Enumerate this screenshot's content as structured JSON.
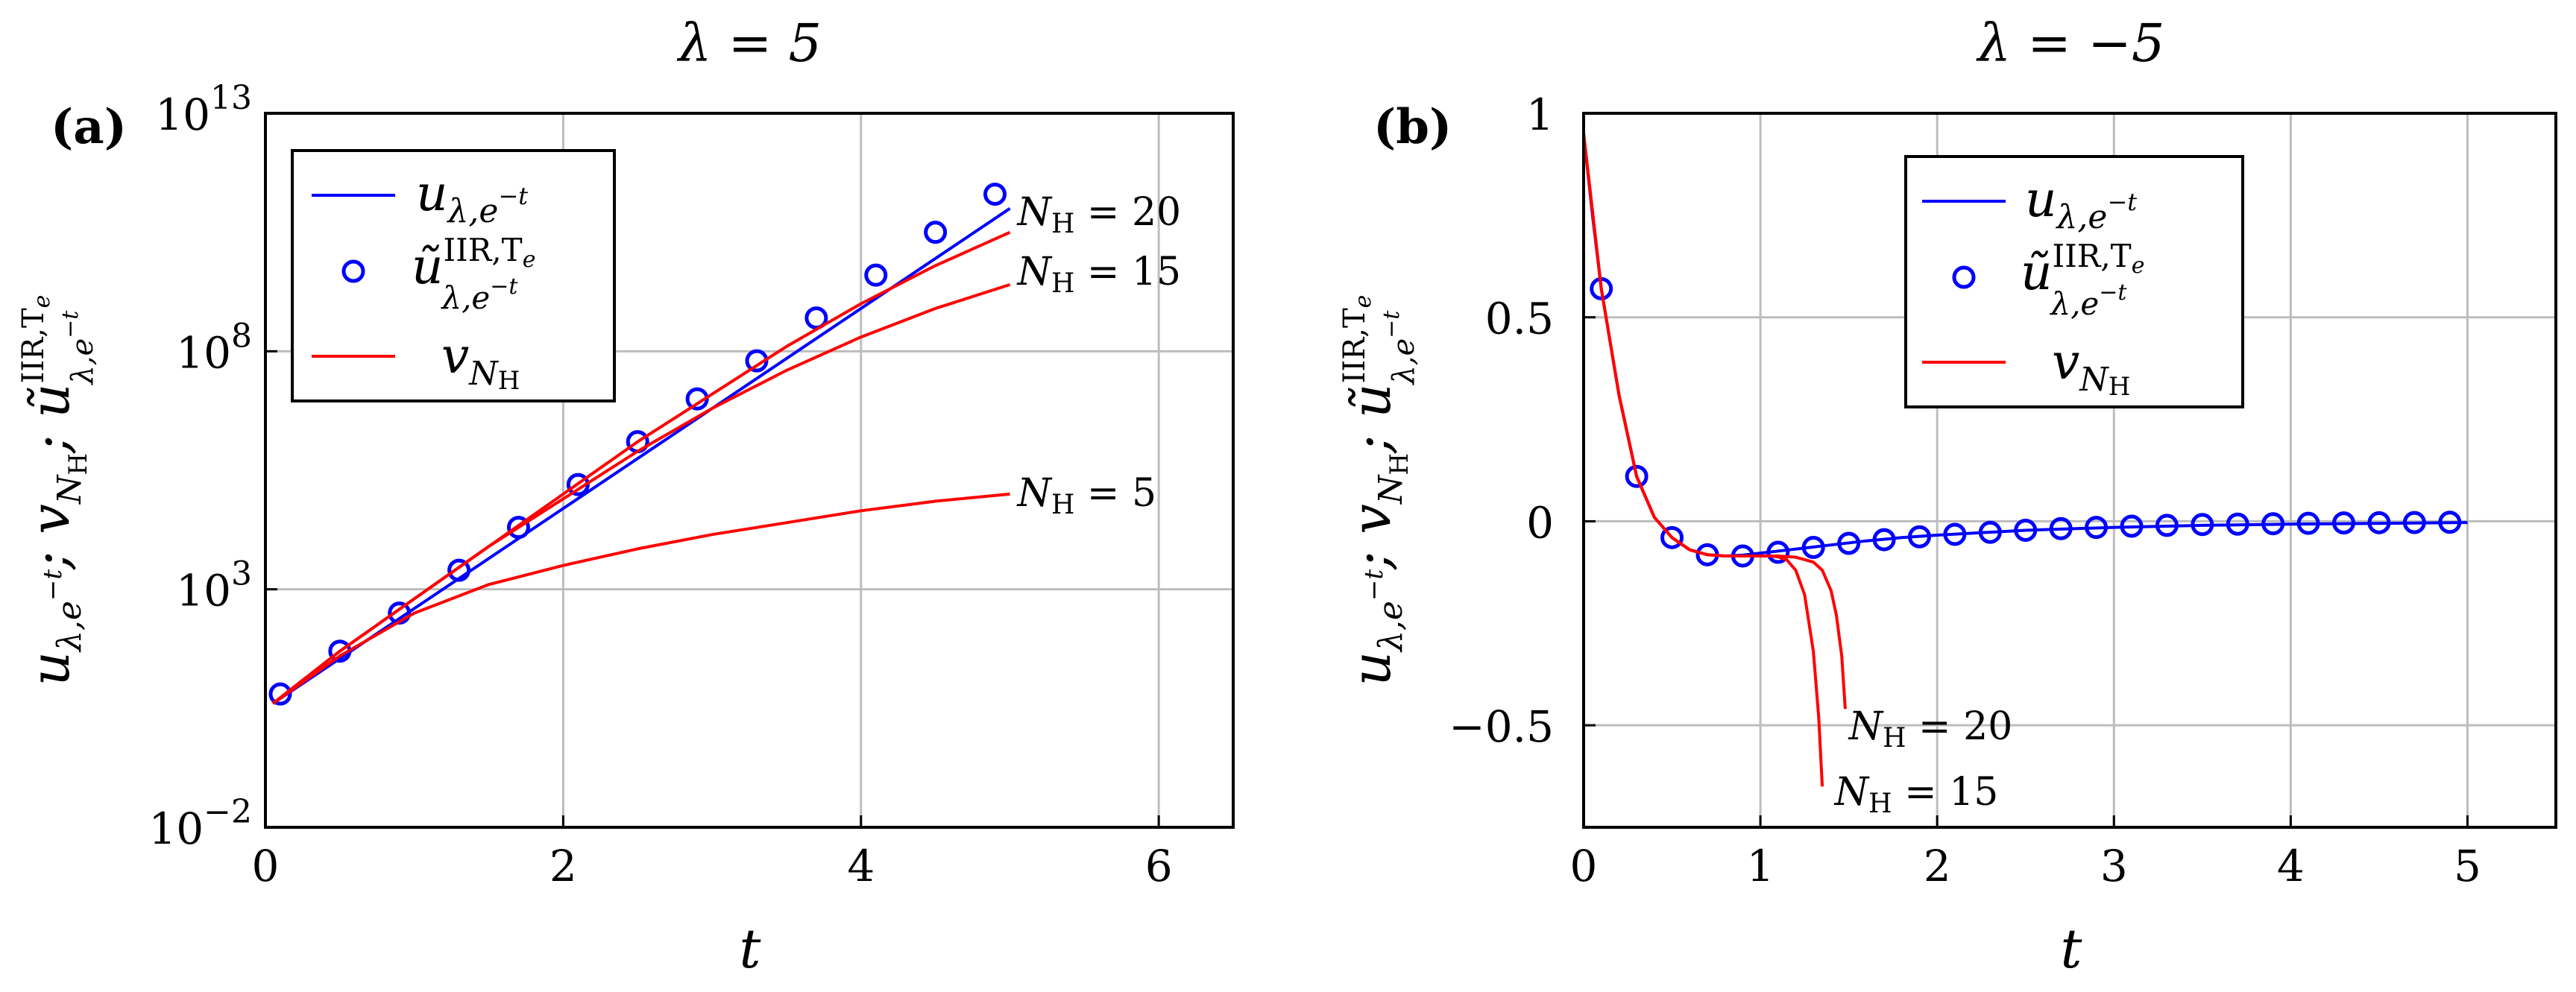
{
  "chart_data": [
    {
      "panel": "(a)",
      "title": "λ = 5",
      "type": "line",
      "yscale": "log",
      "xlabel": "t",
      "ylabel": "u_{λ,e^{-t}}; v_{N_H}; ũ^{IIR,T_e}_{λ,e^{-t}}",
      "xlim": [
        0,
        6.5
      ],
      "ylim_log10": [
        -2,
        13
      ],
      "xticks": [
        "0",
        "2",
        "4",
        "6"
      ],
      "yticks": [
        "10^{-2}",
        "10^{3}",
        "10^{8}",
        "10^{13}"
      ],
      "grid": true,
      "legend": {
        "position": "top-left",
        "entries": [
          "u_{λ,e^{-t}}",
          "ũ^{IIR,T_e}_{λ,e^{-t}}",
          "v_{N_H}"
        ]
      },
      "series": [
        {
          "name": "u_{λ,e^{-t}}",
          "style": "blue-line",
          "x": [
            0.05,
            5.0
          ],
          "log10y": [
            0.6,
            11.0
          ]
        },
        {
          "name": "ũ^{IIR,T_e}_{λ,e^{-t}}",
          "style": "blue-circle",
          "x": [
            0.1,
            0.5,
            0.9,
            1.3,
            1.7,
            2.1,
            2.5,
            2.9,
            3.3,
            3.7,
            4.1,
            4.5,
            4.9
          ],
          "log10y": [
            0.8,
            1.7,
            2.5,
            3.4,
            4.3,
            5.2,
            6.1,
            7.0,
            7.8,
            8.7,
            9.6,
            10.5,
            11.3
          ]
        },
        {
          "name": "v_{N_H}, N_H = 20",
          "style": "red-line",
          "x": [
            0.05,
            0.5,
            1.0,
            1.5,
            2.0,
            2.5,
            3.0,
            3.5,
            4.0,
            4.5,
            5.0
          ],
          "log10y": [
            0.6,
            1.7,
            2.8,
            3.9,
            5.0,
            6.1,
            7.1,
            8.1,
            9.0,
            9.8,
            10.5
          ]
        },
        {
          "name": "v_{N_H}, N_H = 15",
          "style": "red-line",
          "x": [
            0.05,
            0.5,
            1.0,
            1.5,
            2.0,
            2.5,
            3.0,
            3.5,
            4.0,
            4.5,
            5.0
          ],
          "log10y": [
            0.6,
            1.7,
            2.8,
            3.9,
            4.9,
            5.9,
            6.8,
            7.6,
            8.3,
            8.9,
            9.4
          ]
        },
        {
          "name": "v_{N_H}, N_H = 5",
          "style": "red-line",
          "x": [
            0.05,
            0.5,
            1.0,
            1.5,
            2.0,
            2.5,
            3.0,
            3.5,
            4.0,
            4.5,
            5.0
          ],
          "log10y": [
            0.6,
            1.6,
            2.5,
            3.1,
            3.5,
            3.85,
            4.15,
            4.4,
            4.65,
            4.85,
            5.0
          ]
        }
      ],
      "annotations": [
        {
          "text": "N_H = 20",
          "x": 5.05,
          "log10y": 10.9
        },
        {
          "text": "N_H = 15",
          "x": 5.05,
          "log10y": 9.65
        },
        {
          "text": "N_H = 5",
          "x": 5.05,
          "log10y": 5.0
        }
      ]
    },
    {
      "panel": "(b)",
      "title": "λ = −5",
      "type": "line",
      "yscale": "linear",
      "xlabel": "t",
      "ylabel": "u_{λ,e^{-t}}; v_{N_H}; ũ^{IIR,T_e}_{λ,e^{-t}}",
      "xlim": [
        0,
        5.5
      ],
      "ylim": [
        -0.75,
        1
      ],
      "xticks": [
        "0",
        "1",
        "2",
        "3",
        "4",
        "5"
      ],
      "yticks": [
        "−0.5",
        "0",
        "0.5",
        "1"
      ],
      "grid": true,
      "legend": {
        "position": "top-center",
        "entries": [
          "u_{λ,e^{-t}}",
          "ũ^{IIR,T_e}_{λ,e^{-t}}",
          "v_{N_H}"
        ]
      },
      "series": [
        {
          "name": "u_{λ,e^{-t}}",
          "style": "blue-line",
          "x": [
            0.0,
            0.05,
            0.1,
            0.2,
            0.3,
            0.4,
            0.5,
            0.6,
            0.7,
            0.8,
            0.9,
            1.0,
            1.2,
            1.4,
            1.6,
            1.8,
            2.0,
            2.5,
            3.0,
            3.5,
            4.0,
            4.5,
            5.0
          ],
          "y": [
            0.95,
            0.75,
            0.57,
            0.31,
            0.11,
            0.01,
            -0.04,
            -0.07,
            -0.082,
            -0.085,
            -0.083,
            -0.078,
            -0.068,
            -0.058,
            -0.048,
            -0.04,
            -0.034,
            -0.022,
            -0.015,
            -0.01,
            -0.007,
            -0.005,
            -0.003
          ]
        },
        {
          "name": "ũ^{IIR,T_e}_{λ,e^{-t}}",
          "style": "blue-circle",
          "x": [
            0.1,
            0.3,
            0.5,
            0.7,
            0.9,
            1.1,
            1.3,
            1.5,
            1.7,
            1.9,
            2.1,
            2.3,
            2.5,
            2.7,
            2.9,
            3.1,
            3.3,
            3.5,
            3.7,
            3.9,
            4.1,
            4.3,
            4.5,
            4.7,
            4.9
          ],
          "y": [
            0.57,
            0.11,
            -0.04,
            -0.082,
            -0.085,
            -0.076,
            -0.064,
            -0.054,
            -0.045,
            -0.038,
            -0.032,
            -0.027,
            -0.022,
            -0.018,
            -0.015,
            -0.012,
            -0.01,
            -0.008,
            -0.007,
            -0.006,
            -0.005,
            -0.004,
            -0.0035,
            -0.003,
            -0.0025
          ]
        },
        {
          "name": "v_{N_H}, N_H = 20",
          "style": "red-line",
          "x": [
            0.0,
            0.1,
            0.2,
            0.3,
            0.4,
            0.5,
            0.6,
            0.7,
            0.8,
            0.9,
            1.0,
            1.1,
            1.2,
            1.3,
            1.35,
            1.4,
            1.43,
            1.46,
            1.48
          ],
          "y": [
            0.95,
            0.57,
            0.31,
            0.11,
            0.01,
            -0.04,
            -0.07,
            -0.082,
            -0.085,
            -0.085,
            -0.085,
            -0.085,
            -0.088,
            -0.1,
            -0.12,
            -0.17,
            -0.23,
            -0.33,
            -0.46
          ]
        },
        {
          "name": "v_{N_H}, N_H = 15",
          "style": "red-line",
          "x": [
            0.0,
            0.1,
            0.2,
            0.3,
            0.4,
            0.5,
            0.6,
            0.7,
            0.8,
            0.9,
            1.0,
            1.05,
            1.1,
            1.15,
            1.2,
            1.25,
            1.3,
            1.33,
            1.35
          ],
          "y": [
            0.95,
            0.57,
            0.31,
            0.11,
            0.01,
            -0.04,
            -0.07,
            -0.082,
            -0.085,
            -0.085,
            -0.085,
            -0.085,
            -0.087,
            -0.095,
            -0.12,
            -0.18,
            -0.32,
            -0.48,
            -0.65
          ]
        }
      ],
      "annotations": [
        {
          "text": "N_H = 20",
          "x": 1.5,
          "y": -0.48
        },
        {
          "text": "N_H = 15",
          "x": 1.42,
          "y": -0.64
        }
      ]
    }
  ]
}
